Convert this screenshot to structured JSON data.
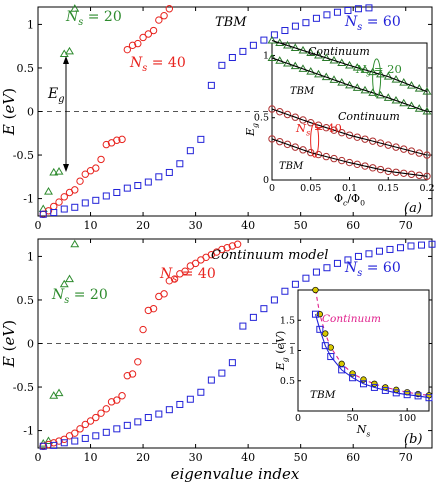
{
  "colors": {
    "green": "#2e8b2e",
    "red": "#e8231e",
    "blue": "#2222d8",
    "black": "#000000",
    "magenta": "#e0208c",
    "yellow": "#d8c800"
  },
  "chart_data": [
    {
      "type": "scatter",
      "panel": "(a)",
      "title": "TBM",
      "xlabel": "",
      "ylabel": "E (eV)",
      "xlim": [
        0,
        75
      ],
      "ylim": [
        -1.2,
        1.2
      ],
      "xticks": [
        0,
        10,
        20,
        30,
        40,
        50,
        60,
        70
      ],
      "yticks": [
        -1,
        -0.5,
        0,
        0.5,
        1
      ],
      "ytick_labels": [
        "-1",
        "-0.5",
        "0",
        "0.5",
        "1"
      ],
      "zero_line": true,
      "gap_label": "E_g",
      "series": [
        {
          "name": "N_s = 20",
          "marker": "triangle",
          "color": "#2e8b2e",
          "x": [
            1,
            2,
            3,
            4,
            5,
            6,
            7
          ],
          "y": [
            -1.12,
            -0.92,
            -0.7,
            -0.69,
            0.66,
            0.69,
            1.18
          ]
        },
        {
          "name": "N_s = 40",
          "marker": "circle",
          "color": "#e8231e",
          "x": [
            1,
            2,
            3,
            4,
            5,
            6,
            7,
            8,
            9,
            10,
            11,
            12,
            13,
            14,
            15,
            16,
            17,
            18,
            19,
            20,
            21,
            22,
            23,
            24,
            25
          ],
          "y": [
            -1.18,
            -1.14,
            -1.09,
            -1.04,
            -0.98,
            -0.93,
            -0.9,
            -0.8,
            -0.72,
            -0.68,
            -0.65,
            -0.55,
            -0.38,
            -0.36,
            -0.33,
            -0.32,
            0.71,
            0.76,
            0.78,
            0.85,
            0.89,
            0.93,
            1.05,
            1.1,
            1.18
          ]
        },
        {
          "name": "N_s = 60",
          "marker": "square",
          "color": "#2222d8",
          "x": [
            1,
            3,
            5,
            7,
            9,
            11,
            13,
            15,
            17,
            19,
            21,
            23,
            25,
            27,
            29,
            31,
            33,
            35,
            37,
            39,
            41,
            43,
            45,
            47,
            49,
            51,
            53,
            55,
            57,
            59,
            61,
            63
          ],
          "y": [
            -1.18,
            -1.16,
            -1.12,
            -1.1,
            -1.05,
            -1.02,
            -0.97,
            -0.93,
            -0.88,
            -0.85,
            -0.81,
            -0.75,
            -0.7,
            -0.6,
            -0.45,
            -0.32,
            0.3,
            0.53,
            0.62,
            0.69,
            0.76,
            0.82,
            0.88,
            0.93,
            0.98,
            1.02,
            1.07,
            1.11,
            1.14,
            1.16,
            1.18,
            1.19
          ]
        }
      ],
      "annotations": [
        "N_s = 20",
        "N_s = 40",
        "N_s = 60",
        "E_g",
        "TBM",
        "(a)"
      ],
      "inset": {
        "xlabel": "Φ_c/Φ_0",
        "ylabel": "E_g",
        "xlim": [
          0,
          0.2
        ],
        "ylim": [
          0,
          1.1
        ],
        "xticks": [
          0,
          0.05,
          0.1,
          0.15,
          0.2
        ],
        "yticks": [
          0,
          0.5,
          1
        ],
        "labels": [
          "Continuum",
          "TBM",
          "N_s = 20",
          "N_s = 40",
          "Continuum",
          "TBM"
        ],
        "curves": [
          {
            "name": "N_s = 20 Continuum",
            "x": [
              0,
              0.05,
              0.1,
              0.15,
              0.2
            ],
            "y": [
              1.12,
              1.02,
              0.92,
              0.83,
              0.71
            ]
          },
          {
            "name": "N_s = 20 TBM",
            "x": [
              0,
              0.05,
              0.1,
              0.15,
              0.2
            ],
            "y": [
              0.98,
              0.87,
              0.76,
              0.66,
              0.55
            ]
          },
          {
            "name": "N_s = 40 Continuum",
            "x": [
              0,
              0.05,
              0.1,
              0.15,
              0.2
            ],
            "y": [
              0.57,
              0.46,
              0.36,
              0.28,
              0.2
            ]
          },
          {
            "name": "N_s = 40 TBM",
            "x": [
              0,
              0.05,
              0.1,
              0.15,
              0.2
            ],
            "y": [
              0.33,
              0.22,
              0.14,
              0.07,
              0.03
            ]
          }
        ]
      }
    },
    {
      "type": "scatter",
      "panel": "(b)",
      "title": "Continuum model",
      "xlabel": "eigenvalue index",
      "ylabel": "E (eV)",
      "xlim": [
        0,
        75
      ],
      "ylim": [
        -1.2,
        1.2
      ],
      "xticks": [
        0,
        10,
        20,
        30,
        40,
        50,
        60,
        70
      ],
      "yticks": [
        -1,
        -0.5,
        0,
        0.5,
        1
      ],
      "ytick_labels": [
        "-1",
        "-0.5",
        "0",
        "0.5",
        "1"
      ],
      "zero_line": true,
      "series": [
        {
          "name": "N_s = 20",
          "marker": "triangle",
          "color": "#2e8b2e",
          "x": [
            1,
            2,
            3,
            4,
            5,
            6,
            7
          ],
          "y": [
            -1.15,
            -1.12,
            -0.6,
            -0.57,
            0.68,
            0.74,
            1.14
          ]
        },
        {
          "name": "N_s = 40",
          "marker": "circle",
          "color": "#e8231e",
          "x": [
            1,
            2,
            3,
            4,
            5,
            6,
            7,
            8,
            9,
            10,
            11,
            12,
            13,
            14,
            15,
            16,
            17,
            18,
            19,
            20,
            21,
            22,
            23,
            24,
            25,
            26,
            27,
            28,
            29,
            30,
            31,
            32,
            33,
            34,
            35,
            36,
            37,
            38
          ],
          "y": [
            -1.18,
            -1.16,
            -1.14,
            -1.12,
            -1.1,
            -1.06,
            -1.03,
            -0.98,
            -0.93,
            -0.89,
            -0.85,
            -0.8,
            -0.75,
            -0.67,
            -0.65,
            -0.6,
            -0.37,
            -0.35,
            -0.21,
            0.16,
            0.38,
            0.4,
            0.54,
            0.57,
            0.72,
            0.74,
            0.8,
            0.83,
            0.89,
            0.92,
            0.96,
            0.99,
            1.02,
            1.05,
            1.08,
            1.1,
            1.12,
            1.14
          ]
        },
        {
          "name": "N_s = 60",
          "marker": "square",
          "color": "#2222d8",
          "x": [
            1,
            3,
            5,
            7,
            9,
            11,
            13,
            15,
            17,
            19,
            21,
            23,
            25,
            27,
            29,
            31,
            33,
            35,
            37,
            39,
            41,
            43,
            45,
            47,
            49,
            51,
            53,
            55,
            57,
            59,
            61,
            63,
            65,
            67,
            69,
            71,
            73,
            75
          ],
          "y": [
            -1.18,
            -1.17,
            -1.14,
            -1.12,
            -1.09,
            -1.06,
            -1.02,
            -0.98,
            -0.94,
            -0.9,
            -0.85,
            -0.81,
            -0.76,
            -0.7,
            -0.64,
            -0.56,
            -0.42,
            -0.34,
            -0.22,
            0.2,
            0.3,
            0.4,
            0.5,
            0.6,
            0.68,
            0.75,
            0.82,
            0.87,
            0.92,
            0.96,
            1.0,
            1.03,
            1.06,
            1.08,
            1.1,
            1.12,
            1.13,
            1.14
          ]
        }
      ],
      "annotations": [
        "N_s = 20",
        "N_s = 40",
        "N_s = 60",
        "Continuum model",
        "(b)"
      ],
      "inset": {
        "xlabel": "N_s",
        "ylabel": "E_g (eV)",
        "xlim": [
          0,
          120
        ],
        "ylim": [
          0,
          2
        ],
        "xticks": [
          0,
          50,
          100
        ],
        "yticks": [
          0.5,
          1,
          1.5
        ],
        "labels": [
          "Continuum",
          "TBM"
        ],
        "curves": [
          {
            "name": "Continuum",
            "x": [
              16,
              20,
              25,
              30,
              40,
              50,
              60,
              70,
              80,
              90,
              100,
              110,
              120
            ],
            "y": [
              2.0,
              1.6,
              1.28,
              1.05,
              0.78,
              0.62,
              0.52,
              0.45,
              0.39,
              0.35,
              0.31,
              0.28,
              0.26
            ]
          },
          {
            "name": "TBM",
            "x": [
              16,
              20,
              25,
              30,
              40,
              50,
              60,
              70,
              80,
              90,
              100,
              110,
              120
            ],
            "y": [
              1.6,
              1.35,
              1.08,
              0.9,
              0.68,
              0.55,
              0.45,
              0.39,
              0.34,
              0.3,
              0.27,
              0.25,
              0.22
            ]
          }
        ]
      }
    }
  ]
}
